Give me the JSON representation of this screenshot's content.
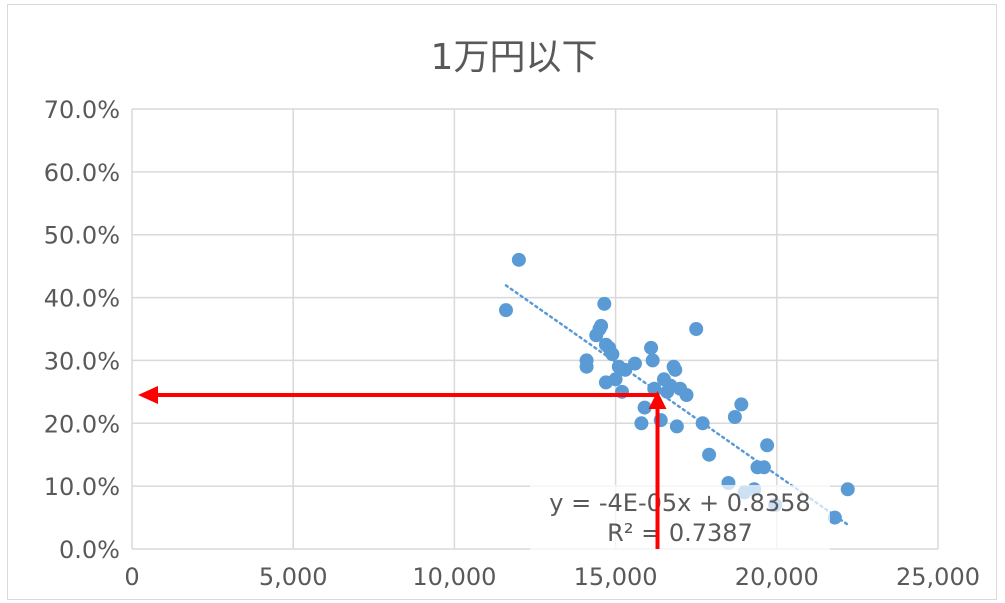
{
  "chart_data": {
    "type": "scatter",
    "title": "1万円以下",
    "xlabel": "",
    "ylabel": "",
    "xlim": [
      0,
      25000
    ],
    "ylim": [
      0,
      0.7
    ],
    "x_ticks": [
      0,
      5000,
      10000,
      15000,
      20000,
      25000
    ],
    "x_tick_labels": [
      "0",
      "5,000",
      "10,000",
      "15,000",
      "20,000",
      "25,000"
    ],
    "y_ticks": [
      0,
      0.1,
      0.2,
      0.3,
      0.4,
      0.5,
      0.6,
      0.7
    ],
    "y_tick_labels": [
      "0.0%",
      "10.0%",
      "20.0%",
      "30.0%",
      "40.0%",
      "50.0%",
      "60.0%",
      "70.0%"
    ],
    "grid": true,
    "marker_color": "#5b9bd5",
    "points": [
      {
        "x": 11600,
        "y": 0.38
      },
      {
        "x": 12000,
        "y": 0.46
      },
      {
        "x": 14100,
        "y": 0.3
      },
      {
        "x": 14100,
        "y": 0.29
      },
      {
        "x": 14400,
        "y": 0.34
      },
      {
        "x": 14500,
        "y": 0.35
      },
      {
        "x": 14550,
        "y": 0.355
      },
      {
        "x": 14650,
        "y": 0.39
      },
      {
        "x": 14700,
        "y": 0.325
      },
      {
        "x": 14800,
        "y": 0.32
      },
      {
        "x": 14900,
        "y": 0.31
      },
      {
        "x": 14700,
        "y": 0.265
      },
      {
        "x": 15000,
        "y": 0.27
      },
      {
        "x": 15100,
        "y": 0.29
      },
      {
        "x": 15200,
        "y": 0.25
      },
      {
        "x": 15300,
        "y": 0.285
      },
      {
        "x": 15600,
        "y": 0.295
      },
      {
        "x": 15800,
        "y": 0.2
      },
      {
        "x": 15900,
        "y": 0.225
      },
      {
        "x": 16100,
        "y": 0.32
      },
      {
        "x": 16150,
        "y": 0.3
      },
      {
        "x": 16200,
        "y": 0.255
      },
      {
        "x": 16400,
        "y": 0.205
      },
      {
        "x": 16500,
        "y": 0.27
      },
      {
        "x": 16600,
        "y": 0.25
      },
      {
        "x": 16700,
        "y": 0.26
      },
      {
        "x": 16800,
        "y": 0.29
      },
      {
        "x": 16850,
        "y": 0.285
      },
      {
        "x": 16900,
        "y": 0.195
      },
      {
        "x": 17000,
        "y": 0.255
      },
      {
        "x": 17200,
        "y": 0.245
      },
      {
        "x": 17500,
        "y": 0.35
      },
      {
        "x": 17700,
        "y": 0.2
      },
      {
        "x": 17900,
        "y": 0.15
      },
      {
        "x": 18500,
        "y": 0.105
      },
      {
        "x": 18700,
        "y": 0.21
      },
      {
        "x": 18900,
        "y": 0.23
      },
      {
        "x": 19000,
        "y": 0.09
      },
      {
        "x": 19300,
        "y": 0.095
      },
      {
        "x": 19400,
        "y": 0.13
      },
      {
        "x": 19600,
        "y": 0.13
      },
      {
        "x": 19700,
        "y": 0.165
      },
      {
        "x": 19950,
        "y": 0.07
      },
      {
        "x": 21800,
        "y": 0.05
      },
      {
        "x": 22200,
        "y": 0.095
      }
    ],
    "trendline": {
      "style": "dotted",
      "x_range": [
        11600,
        22200
      ],
      "slope": -3.59e-05,
      "intercept": 0.8358,
      "equation": "y = -4E-05x + 0.8358",
      "r_squared": "R² = 0.7387"
    },
    "annotation_arrows": {
      "color": "#ff0000",
      "x_value": 16300,
      "y_value": 0.245
    }
  }
}
